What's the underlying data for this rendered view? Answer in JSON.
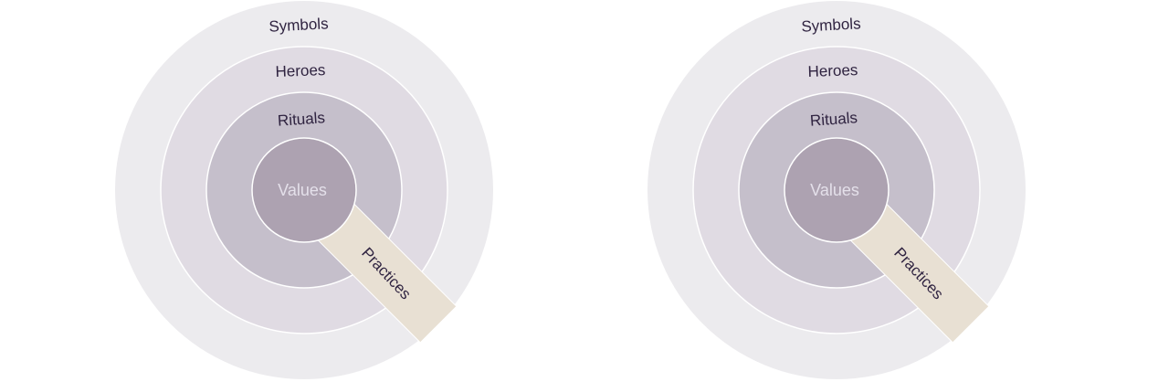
{
  "diagrams": [
    {
      "layers": {
        "outer": "Symbols",
        "second": "Heroes",
        "third": "Rituals",
        "core": "Values"
      },
      "band_label": "Practices"
    },
    {
      "layers": {
        "outer": "Symbols",
        "second": "Heroes",
        "third": "Rituals",
        "core": "Values"
      },
      "band_label": "Practices"
    }
  ],
  "colors": {
    "outer_ring": "#ecebee",
    "second_ring": "#e0dbe3",
    "third_ring": "#c5bfcb",
    "core": "#ada2b1",
    "ring_stroke": "#ffffff",
    "band_fill": "#e8e0d3",
    "label_text": "#2f2340",
    "core_text": "#e4e0ea"
  }
}
